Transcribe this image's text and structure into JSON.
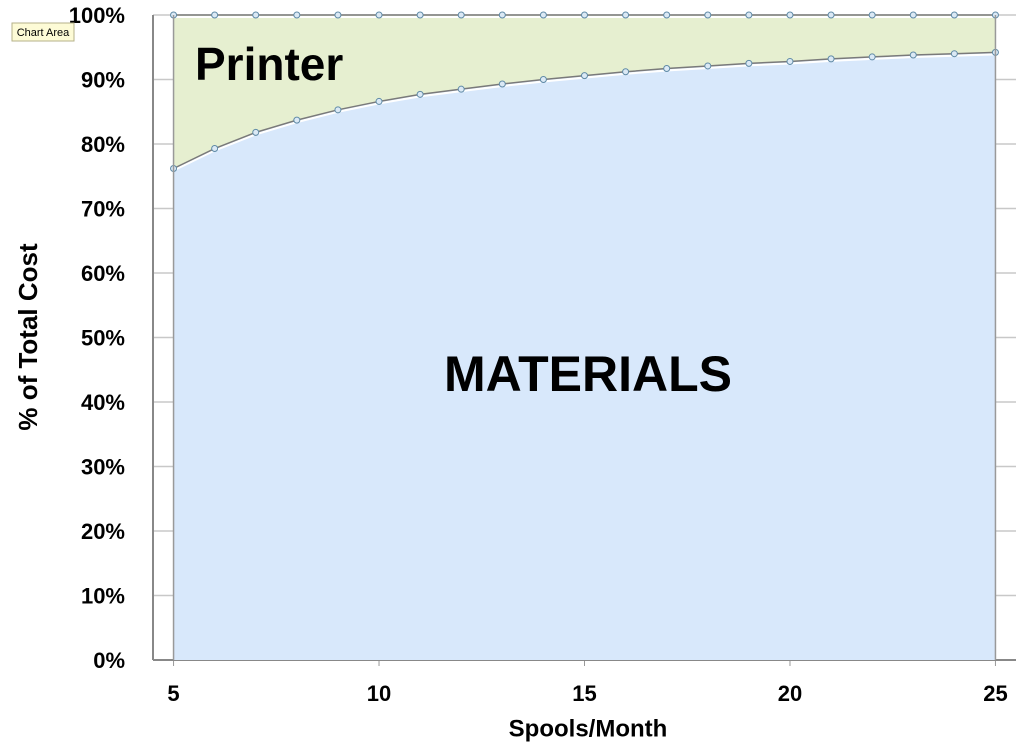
{
  "chart_data": {
    "type": "stacked_area",
    "x_label": "Spools/Month",
    "y_label": "% of Total Cost",
    "tooltip": "Chart Area",
    "x": [
      5,
      6,
      7,
      8,
      9,
      10,
      11,
      12,
      13,
      14,
      15,
      16,
      17,
      18,
      19,
      20,
      21,
      22,
      23,
      24,
      25
    ],
    "series": [
      {
        "name": "MATERIALS",
        "color": "#d8e8fb",
        "values": [
          76.2,
          79.3,
          81.8,
          83.7,
          85.3,
          86.6,
          87.7,
          88.5,
          89.3,
          90.0,
          90.6,
          91.2,
          91.7,
          92.1,
          92.5,
          92.8,
          93.2,
          93.5,
          93.8,
          94.0,
          94.2
        ]
      },
      {
        "name": "Printer",
        "color": "#e6efd0",
        "values": [
          23.8,
          20.7,
          18.2,
          16.3,
          14.7,
          13.4,
          12.3,
          11.5,
          10.7,
          10.0,
          9.4,
          8.8,
          8.3,
          7.9,
          7.5,
          7.2,
          6.8,
          6.5,
          6.2,
          6.0,
          5.8
        ]
      }
    ],
    "xlim": [
      4.5,
      25.5
    ],
    "xticks": [
      5,
      10,
      15,
      20,
      25
    ],
    "ylim": [
      0,
      100
    ],
    "yticks": [
      {
        "value": 0,
        "label": "0%"
      },
      {
        "value": 10,
        "label": "10%"
      },
      {
        "value": 20,
        "label": "20%"
      },
      {
        "value": 30,
        "label": "30%"
      },
      {
        "value": 40,
        "label": "40%"
      },
      {
        "value": 50,
        "label": "50%"
      },
      {
        "value": 60,
        "label": "60%"
      },
      {
        "value": 70,
        "label": "70%"
      },
      {
        "value": 80,
        "label": "80%"
      },
      {
        "value": 90,
        "label": "90%"
      },
      {
        "value": 100,
        "label": "100%"
      }
    ],
    "grid": true
  }
}
